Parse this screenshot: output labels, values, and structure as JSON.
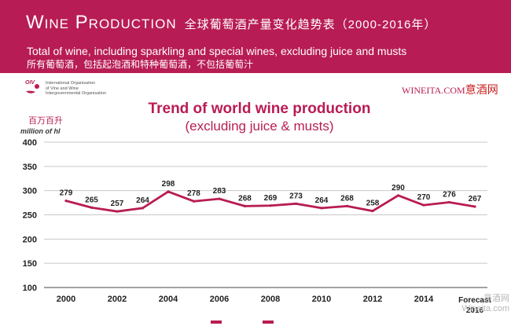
{
  "banner": {
    "title_en": "Wine Production",
    "title_cn": "全球葡萄酒产量变化趋势表（2000-2016年）",
    "subtitle_en": "Total of wine, including sparkling and special wines, excluding juice and musts",
    "subtitle_cn": "所有葡萄酒，包括起泡酒和特种葡萄酒，不包括葡萄汁",
    "background_color": "#b81c54"
  },
  "logo": {
    "abbr": "OIV",
    "lines": [
      "International Organisation",
      "of Vine and Wine",
      "Intergovernmental Organisation"
    ]
  },
  "watermark_top": {
    "part1": "WINEITA.COM",
    "part2": "意酒网"
  },
  "watermark_bottom": {
    "line1": "意酒网",
    "line2": "Wineita.com"
  },
  "unit_cn": "百万百升",
  "chart_data": {
    "type": "line",
    "title": "Trend of world wine production",
    "subtitle": "(excluding juice & musts)",
    "ylabel": "million of hl",
    "ylim": [
      100,
      400
    ],
    "yticks": [
      100,
      150,
      200,
      250,
      300,
      350,
      400
    ],
    "grid": true,
    "color": "#b81c54",
    "x": [
      2000,
      2001,
      2002,
      2003,
      2004,
      2005,
      2006,
      2007,
      2008,
      2009,
      2010,
      2011,
      2012,
      2013,
      2014,
      2015,
      2016
    ],
    "values": [
      279,
      265,
      257,
      264,
      298,
      278,
      283,
      268,
      269,
      273,
      264,
      268,
      258,
      290,
      270,
      276,
      267
    ],
    "tick_labels": [
      "2000",
      "2002",
      "2004",
      "2006",
      "2008",
      "2010",
      "2012",
      "2014"
    ],
    "tick_years": [
      2000,
      2002,
      2004,
      2006,
      2008,
      2010,
      2012,
      2014
    ],
    "forecast_label": [
      "Forecast",
      "2016"
    ]
  }
}
